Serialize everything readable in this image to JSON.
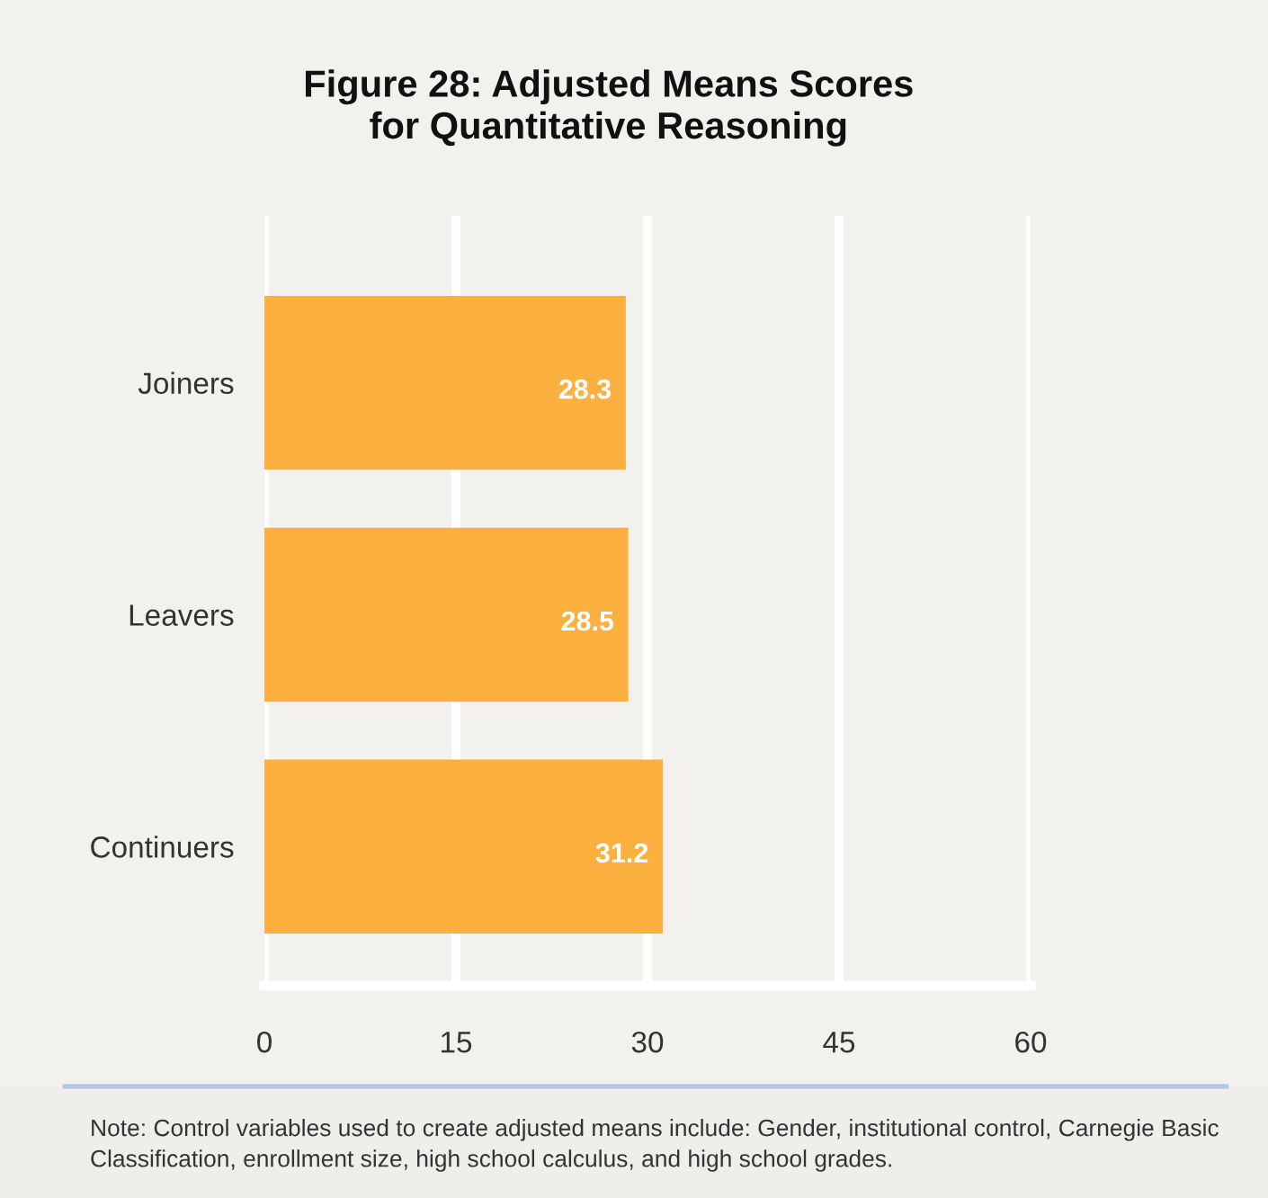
{
  "chart_data": {
    "type": "bar",
    "orientation": "horizontal",
    "title": "Figure 28: Adjusted Means Scores\nfor Quantitative Reasoning",
    "categories": [
      "Joiners",
      "Leavers",
      "Continuers"
    ],
    "values": [
      28.3,
      28.5,
      31.2
    ],
    "color": "#fbb040",
    "xlim": [
      0,
      60
    ],
    "xticks": [
      0,
      15,
      30,
      45,
      60
    ],
    "grid": "x",
    "data_labels": true,
    "annotations": [
      "Note: Control variables used to create adjusted means include: Gender, institutional control, Carnegie Basic\nClassification, enrollment size, high school calculus, and high school grades."
    ]
  }
}
